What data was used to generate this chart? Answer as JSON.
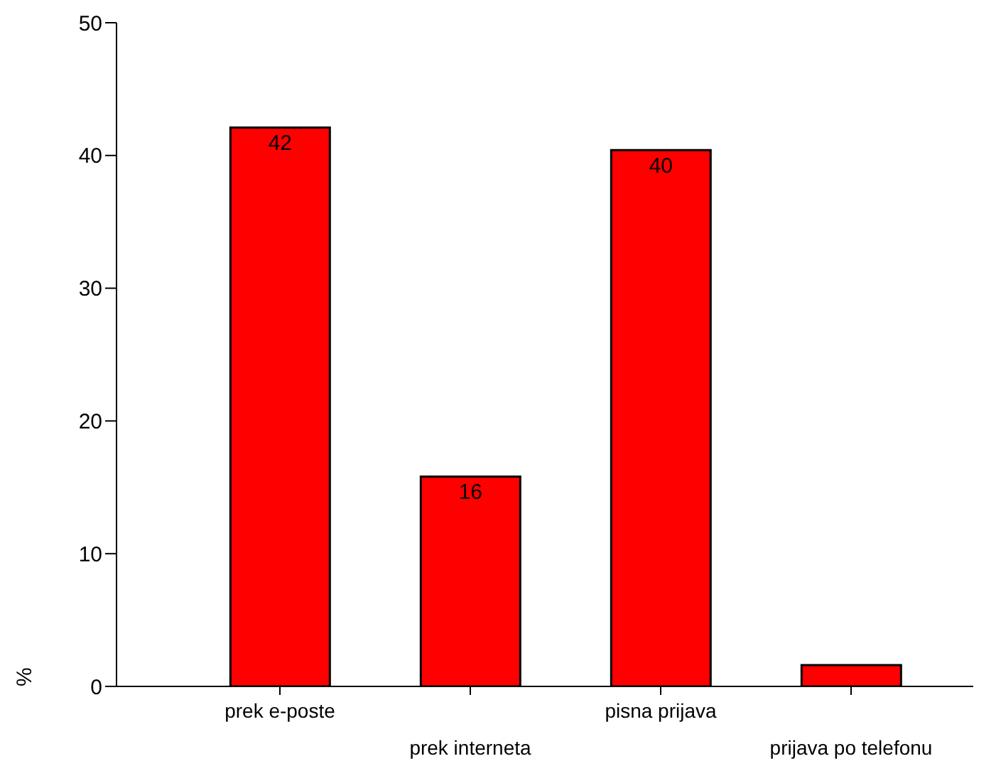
{
  "chart_data": {
    "type": "bar",
    "ylabel": "%",
    "categories": [
      "prek e-poste",
      "prek interneta",
      "pisna prijava",
      "prijava po telefonu"
    ],
    "values": [
      42.1,
      15.8,
      40.4,
      1.6
    ],
    "color": "#ff0000",
    "value_labels": [
      "42",
      "16",
      "40",
      null
    ],
    "ylim": [
      0,
      50
    ],
    "yticks": [
      0,
      10,
      20,
      30,
      40,
      50
    ],
    "grid": false,
    "legend": false
  }
}
